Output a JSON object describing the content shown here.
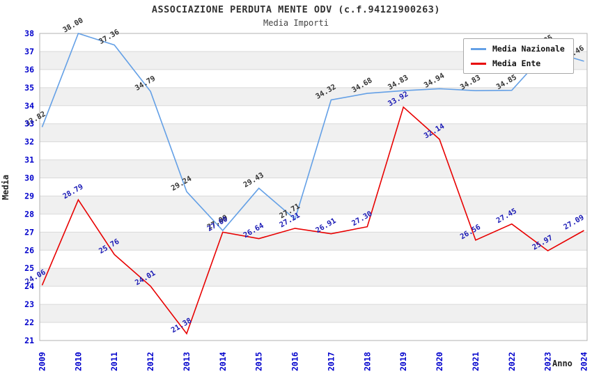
{
  "title": "ASSOCIAZIONE PERDUTA MENTE ODV (c.f.94121900263)",
  "subtitle": "Media Importi",
  "axes": {
    "y_label": "Media",
    "x_label": "Anno"
  },
  "legend": [
    {
      "label": "Media Nazionale",
      "color": "#64a0e6"
    },
    {
      "label": "Media Ente",
      "color": "#e80000"
    }
  ],
  "chart_data": {
    "type": "line",
    "title": "ASSOCIAZIONE PERDUTA MENTE ODV (c.f.94121900263)",
    "subtitle": "Media Importi",
    "xlabel": "Anno",
    "ylabel": "Media",
    "x": [
      2009,
      2010,
      2011,
      2012,
      2013,
      2014,
      2015,
      2016,
      2017,
      2018,
      2019,
      2020,
      2021,
      2022,
      2023,
      2024
    ],
    "series": [
      {
        "name": "Media Nazionale",
        "color": "#64a0e6",
        "label_color": "#333333",
        "values": [
          32.82,
          38.0,
          37.36,
          34.79,
          29.24,
          27.09,
          29.43,
          27.71,
          34.32,
          34.68,
          34.83,
          34.94,
          34.83,
          34.85,
          37.05,
          36.46
        ]
      },
      {
        "name": "Media Ente",
        "color": "#e80000",
        "label_color": "#1a1ab5",
        "values": [
          24.06,
          28.79,
          25.76,
          24.01,
          21.38,
          27.0,
          26.64,
          27.21,
          26.91,
          27.3,
          33.92,
          32.14,
          26.56,
          27.45,
          25.97,
          27.09
        ]
      }
    ],
    "ylim": [
      21,
      38
    ],
    "ytick_step": 1,
    "grid": true,
    "band_fill": "#f0f0f0",
    "gridline_color": "#d9d9d9",
    "frame_color": "#b0b0b0",
    "tick_color": "#0000cc",
    "legend_position": "top-right"
  }
}
